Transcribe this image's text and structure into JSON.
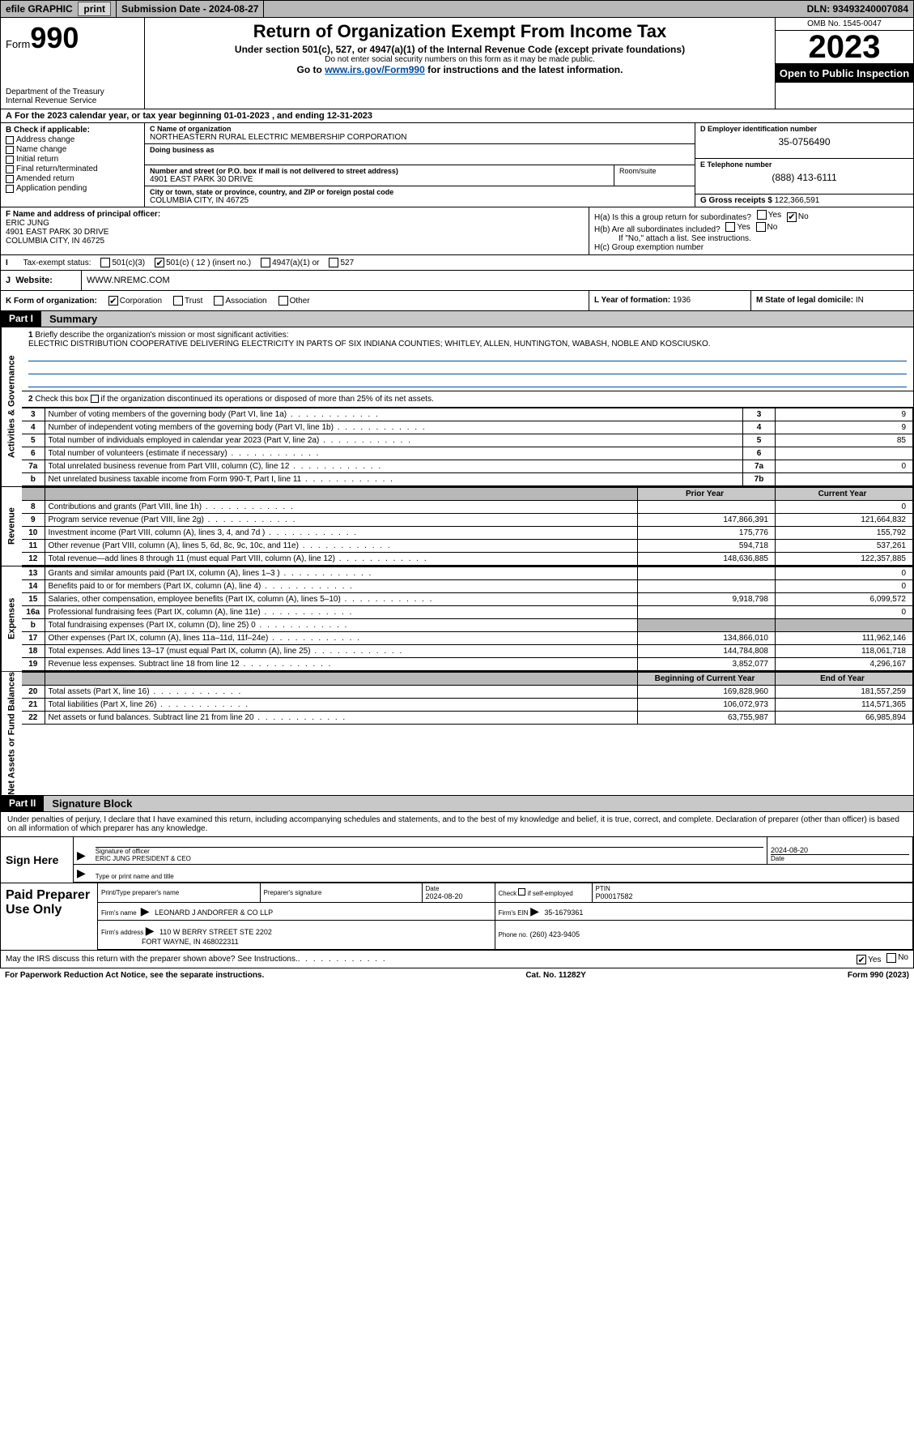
{
  "topbar": {
    "efile": "efile GRAPHIC",
    "print": "print",
    "submission": "Submission Date - 2024-08-27",
    "dln": "DLN: 93493240007084"
  },
  "header": {
    "form_label": "Form",
    "form_num": "990",
    "dept": "Department of the Treasury",
    "irs": "Internal Revenue Service",
    "title": "Return of Organization Exempt From Income Tax",
    "subtitle": "Under section 501(c), 527, or 4947(a)(1) of the Internal Revenue Code (except private foundations)",
    "note1": "Do not enter social security numbers on this form as it may be made public.",
    "note2_pre": "Go to ",
    "note2_link": "www.irs.gov/Form990",
    "note2_post": " for instructions and the latest information.",
    "omb": "OMB No. 1545-0047",
    "year": "2023",
    "open": "Open to Public Inspection"
  },
  "period": "For the 2023 calendar year, or tax year beginning 01-01-2023   , and ending 12-31-2023",
  "b": {
    "hdr": "B Check if applicable:",
    "items": [
      "Address change",
      "Name change",
      "Initial return",
      "Final return/terminated",
      "Amended return",
      "Application pending"
    ]
  },
  "c": {
    "name_lbl": "C Name of organization",
    "name": "NORTHEASTERN RURAL ELECTRIC MEMBERSHIP CORPORATION",
    "dba_lbl": "Doing business as",
    "addr_lbl": "Number and street (or P.O. box if mail is not delivered to street address)",
    "room_lbl": "Room/suite",
    "addr": "4901 EAST PARK 30 DRIVE",
    "city_lbl": "City or town, state or province, country, and ZIP or foreign postal code",
    "city": "COLUMBIA CITY, IN  46725"
  },
  "d": {
    "lbl": "D Employer identification number",
    "val": "35-0756490"
  },
  "e": {
    "lbl": "E Telephone number",
    "val": "(888) 413-6111"
  },
  "g": {
    "lbl": "G Gross receipts $",
    "val": "122,366,591"
  },
  "f": {
    "lbl": "F  Name and address of principal officer:",
    "name": "ERIC JUNG",
    "addr1": "4901 EAST PARK 30 DRIVE",
    "addr2": "COLUMBIA CITY, IN  46725"
  },
  "h": {
    "a": "H(a)  Is this a group return for subordinates?",
    "b": "H(b)  Are all subordinates included?",
    "b_note": "If \"No,\" attach a list. See instructions.",
    "c": "H(c)  Group exemption number"
  },
  "i": {
    "lbl": "Tax-exempt status:",
    "o1": "501(c)(3)",
    "o2": "501(c) ( 12 ) (insert no.)",
    "o3": "4947(a)(1) or",
    "o4": "527"
  },
  "j": {
    "lbl": "Website:",
    "val": "WWW.NREMC.COM"
  },
  "k": {
    "lbl": "K Form of organization:",
    "o1": "Corporation",
    "o2": "Trust",
    "o3": "Association",
    "o4": "Other"
  },
  "l": {
    "lbl": "L Year of formation:",
    "val": "1936"
  },
  "m": {
    "lbl": "M State of legal domicile:",
    "val": "IN"
  },
  "parts": {
    "p1": "Part I",
    "p1_title": "Summary",
    "p2": "Part II",
    "p2_title": "Signature Block"
  },
  "vtabs": {
    "gov": "Activities & Governance",
    "rev": "Revenue",
    "exp": "Expenses",
    "net": "Net Assets or Fund Balances"
  },
  "mission": {
    "lbl": "Briefly describe the organization's mission or most significant activities:",
    "text": "ELECTRIC DISTRIBUTION COOPERATIVE DELIVERING ELECTRICITY IN PARTS OF SIX INDIANA COUNTIES; WHITLEY, ALLEN, HUNTINGTON, WABASH, NOBLE AND KOSCIUSKO."
  },
  "line2": "Check this box        if the organization discontinued its operations or disposed of more than 25% of its net assets.",
  "gov_rows": [
    {
      "n": "3",
      "d": "Number of voting members of the governing body (Part VI, line 1a)",
      "s": "3",
      "v": "9"
    },
    {
      "n": "4",
      "d": "Number of independent voting members of the governing body (Part VI, line 1b)",
      "s": "4",
      "v": "9"
    },
    {
      "n": "5",
      "d": "Total number of individuals employed in calendar year 2023 (Part V, line 2a)",
      "s": "5",
      "v": "85"
    },
    {
      "n": "6",
      "d": "Total number of volunteers (estimate if necessary)",
      "s": "6",
      "v": ""
    },
    {
      "n": "7a",
      "d": "Total unrelated business revenue from Part VIII, column (C), line 12",
      "s": "7a",
      "v": "0"
    },
    {
      "n": "b",
      "d": "Net unrelated business taxable income from Form 990-T, Part I, line 11",
      "s": "7b",
      "v": ""
    }
  ],
  "col_hdrs": {
    "prior": "Prior Year",
    "current": "Current Year",
    "beg": "Beginning of Current Year",
    "end": "End of Year"
  },
  "rev_rows": [
    {
      "n": "8",
      "d": "Contributions and grants (Part VIII, line 1h)",
      "p": "",
      "c": "0"
    },
    {
      "n": "9",
      "d": "Program service revenue (Part VIII, line 2g)",
      "p": "147,866,391",
      "c": "121,664,832"
    },
    {
      "n": "10",
      "d": "Investment income (Part VIII, column (A), lines 3, 4, and 7d )",
      "p": "175,776",
      "c": "155,792"
    },
    {
      "n": "11",
      "d": "Other revenue (Part VIII, column (A), lines 5, 6d, 8c, 9c, 10c, and 11e)",
      "p": "594,718",
      "c": "537,261"
    },
    {
      "n": "12",
      "d": "Total revenue—add lines 8 through 11 (must equal Part VIII, column (A), line 12)",
      "p": "148,636,885",
      "c": "122,357,885"
    }
  ],
  "exp_rows": [
    {
      "n": "13",
      "d": "Grants and similar amounts paid (Part IX, column (A), lines 1–3 )",
      "p": "",
      "c": "0"
    },
    {
      "n": "14",
      "d": "Benefits paid to or for members (Part IX, column (A), line 4)",
      "p": "",
      "c": "0"
    },
    {
      "n": "15",
      "d": "Salaries, other compensation, employee benefits (Part IX, column (A), lines 5–10)",
      "p": "9,918,798",
      "c": "6,099,572"
    },
    {
      "n": "16a",
      "d": "Professional fundraising fees (Part IX, column (A), line 11e)",
      "p": "",
      "c": "0"
    },
    {
      "n": "b",
      "d": "Total fundraising expenses (Part IX, column (D), line 25) 0",
      "p": "SHADE",
      "c": "SHADE"
    },
    {
      "n": "17",
      "d": "Other expenses (Part IX, column (A), lines 11a–11d, 11f–24e)",
      "p": "134,866,010",
      "c": "111,962,146"
    },
    {
      "n": "18",
      "d": "Total expenses. Add lines 13–17 (must equal Part IX, column (A), line 25)",
      "p": "144,784,808",
      "c": "118,061,718"
    },
    {
      "n": "19",
      "d": "Revenue less expenses. Subtract line 18 from line 12",
      "p": "3,852,077",
      "c": "4,296,167"
    }
  ],
  "net_rows": [
    {
      "n": "20",
      "d": "Total assets (Part X, line 16)",
      "p": "169,828,960",
      "c": "181,557,259"
    },
    {
      "n": "21",
      "d": "Total liabilities (Part X, line 26)",
      "p": "106,072,973",
      "c": "114,571,365"
    },
    {
      "n": "22",
      "d": "Net assets or fund balances. Subtract line 21 from line 20",
      "p": "63,755,987",
      "c": "66,985,894"
    }
  ],
  "sig_decl": "Under penalties of perjury, I declare that I have examined this return, including accompanying schedules and statements, and to the best of my knowledge and belief, it is true, correct, and complete. Declaration of preparer (other than officer) is based on all information of which preparer has any knowledge.",
  "sign": {
    "hdr": "Sign Here",
    "date": "2024-08-20",
    "sig_lbl": "Signature of officer",
    "name": "ERIC JUNG PRESIDENT & CEO",
    "type_lbl": "Type or print name and title",
    "date_lbl": "Date"
  },
  "paid": {
    "hdr": "Paid Preparer Use Only",
    "prep_name_lbl": "Print/Type preparer's name",
    "prep_sig_lbl": "Preparer's signature",
    "date_lbl": "Date",
    "date": "2024-08-20",
    "check_lbl": "Check         if self-employed",
    "ptin_lbl": "PTIN",
    "ptin": "P00017582",
    "firm_name_lbl": "Firm's name",
    "firm_name": "LEONARD J ANDORFER & CO LLP",
    "firm_ein_lbl": "Firm's EIN",
    "firm_ein": "35-1679361",
    "firm_addr_lbl": "Firm's address",
    "firm_addr1": "110 W BERRY STREET STE 2202",
    "firm_addr2": "FORT WAYNE, IN  468022311",
    "phone_lbl": "Phone no.",
    "phone": "(260) 423-9405"
  },
  "discuss": "May the IRS discuss this return with the preparer shown above? See Instructions.",
  "footer": {
    "pra": "For Paperwork Reduction Act Notice, see the separate instructions.",
    "cat": "Cat. No. 11282Y",
    "form": "Form 990 (2023)"
  },
  "yes": "Yes",
  "no": "No"
}
